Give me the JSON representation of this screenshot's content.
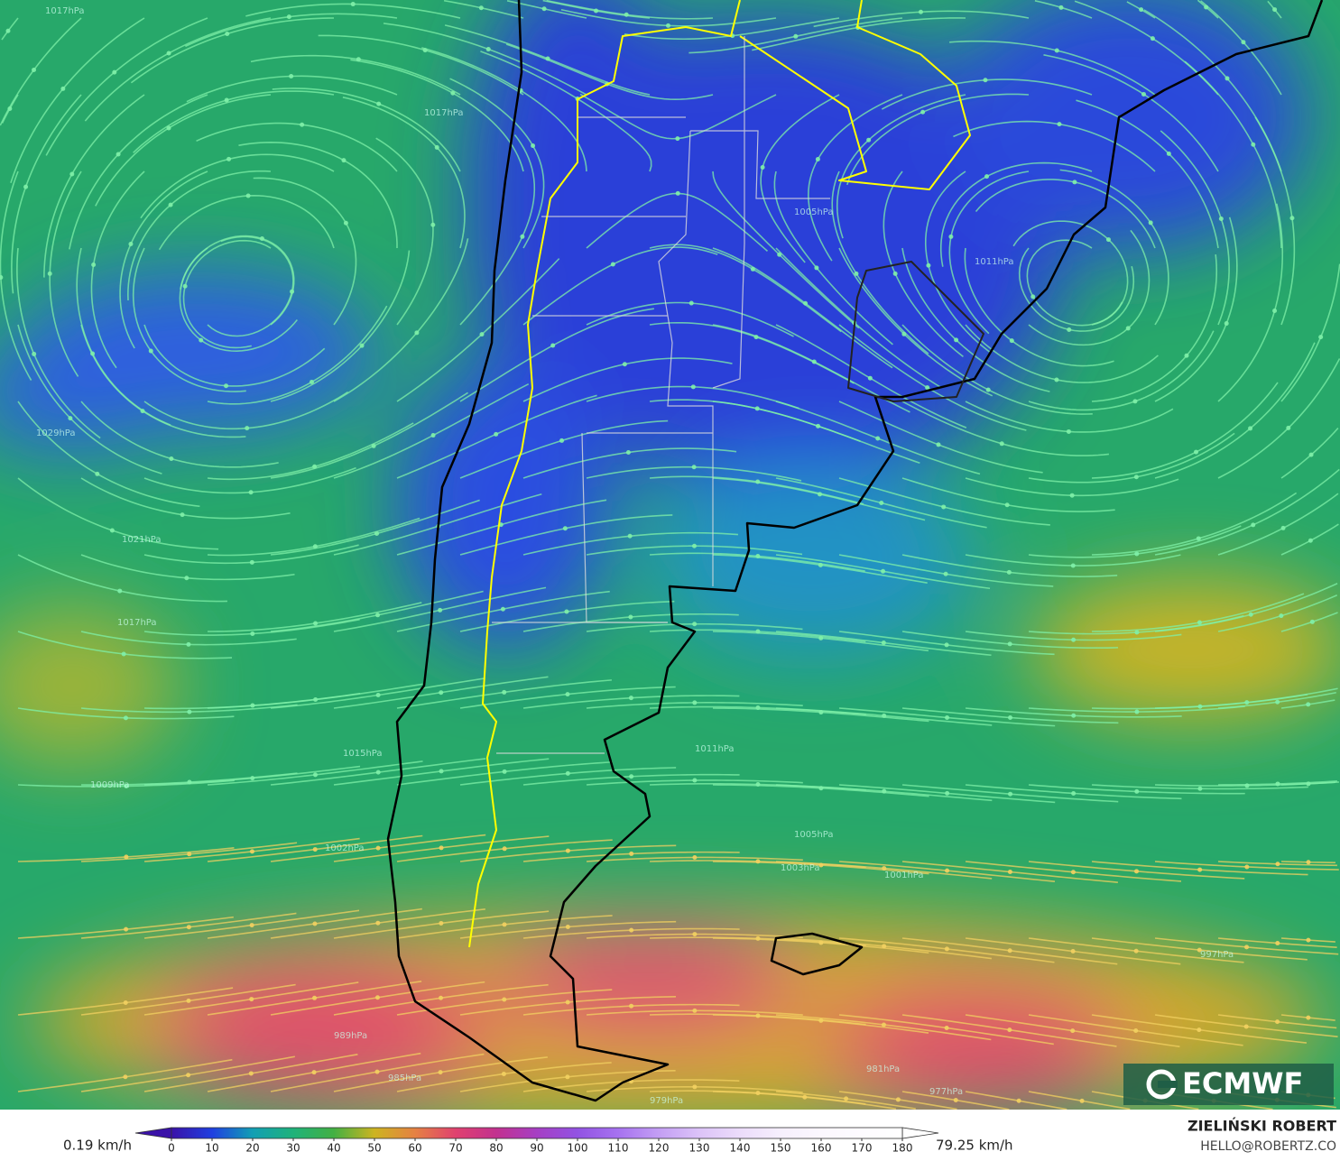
{
  "map": {
    "isobar_labels": [
      "1017hPa",
      "1017hPa",
      "1029hPa",
      "1021hPa",
      "1017hPa",
      "1015hPa",
      "1009hPa",
      "1002hPa",
      "1011hPa",
      "1011hPa",
      "1005hPa",
      "1005hPa",
      "1003hPa",
      "1001hPa",
      "997hPa",
      "989hPa",
      "985hPa",
      "979hPa",
      "981hPa",
      "977hPa"
    ],
    "logo": "ECMWF"
  },
  "colorbar": {
    "min": {
      "value": 0.19,
      "label": "0.19 km/h"
    },
    "max": {
      "value": 79.25,
      "label": "79.25 km/h"
    },
    "lim": [
      0,
      180
    ],
    "ticks": [
      0,
      10,
      20,
      30,
      40,
      50,
      60,
      70,
      80,
      90,
      100,
      110,
      120,
      130,
      140,
      150,
      160,
      170,
      180
    ],
    "colors": [
      "#3a12a8",
      "#1f3fe0",
      "#139fb4",
      "#1fb27a",
      "#43b043",
      "#cdb421",
      "#e58143",
      "#e0416f",
      "#c2318f",
      "#a63fc4",
      "#9253e3",
      "#a672f0",
      "#c39ef4",
      "#dcc3f8",
      "#ecdcfb",
      "#f6effd",
      "#fbf7fe",
      "#fdfbff",
      "#ffffff"
    ]
  },
  "credit": {
    "name": "ZIELIŃSKI ROBERT",
    "email": "HELLO@ROBERTZ.CO"
  }
}
